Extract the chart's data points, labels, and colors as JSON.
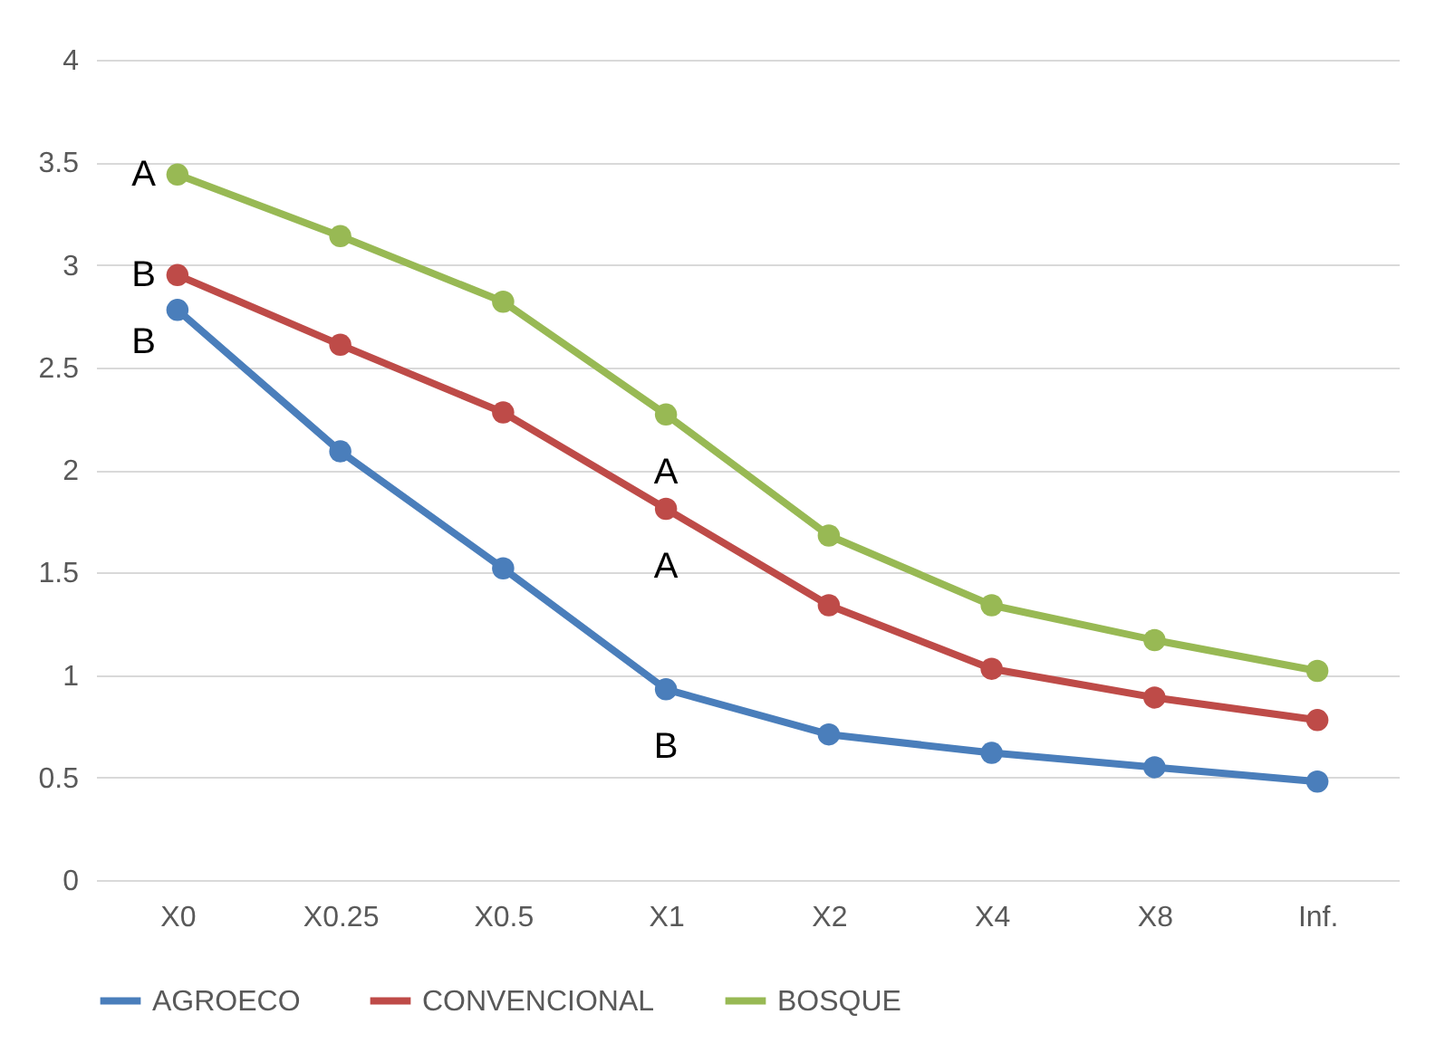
{
  "chart_data": {
    "type": "line",
    "categories": [
      "X0",
      "X0.25",
      "X0.5",
      "X1",
      "X2",
      "X4",
      "X8",
      "Inf."
    ],
    "series": [
      {
        "name": "AGROECO",
        "color": "#4a7ebb",
        "values": [
          2.78,
          2.09,
          1.52,
          0.93,
          0.71,
          0.62,
          0.55,
          0.48
        ]
      },
      {
        "name": "CONVENCIONAL",
        "color": "#be4b48",
        "values": [
          2.95,
          2.61,
          2.28,
          1.81,
          1.34,
          1.03,
          0.89,
          0.78
        ]
      },
      {
        "name": "BOSQUE",
        "color": "#98b954",
        "values": [
          3.44,
          3.14,
          2.82,
          2.27,
          1.68,
          1.34,
          1.17,
          1.02
        ]
      }
    ],
    "ylim": [
      0,
      4
    ],
    "yticks": [
      0,
      0.5,
      1,
      1.5,
      2,
      2.5,
      3,
      3.5,
      4
    ],
    "grid": "y",
    "legend": "bottom",
    "marker": "circle",
    "line_style": "solid",
    "annotations": [
      {
        "text": "A",
        "x": "X0",
        "y": 3.44
      },
      {
        "text": "B",
        "x": "X0",
        "y": 2.95
      },
      {
        "text": "B",
        "x": "X0",
        "y": 2.78
      },
      {
        "text": "A",
        "x": "X1",
        "y": 2.27
      },
      {
        "text": "A",
        "x": "X1",
        "y": 1.81
      },
      {
        "text": "B",
        "x": "X1",
        "y": 0.93
      }
    ]
  }
}
